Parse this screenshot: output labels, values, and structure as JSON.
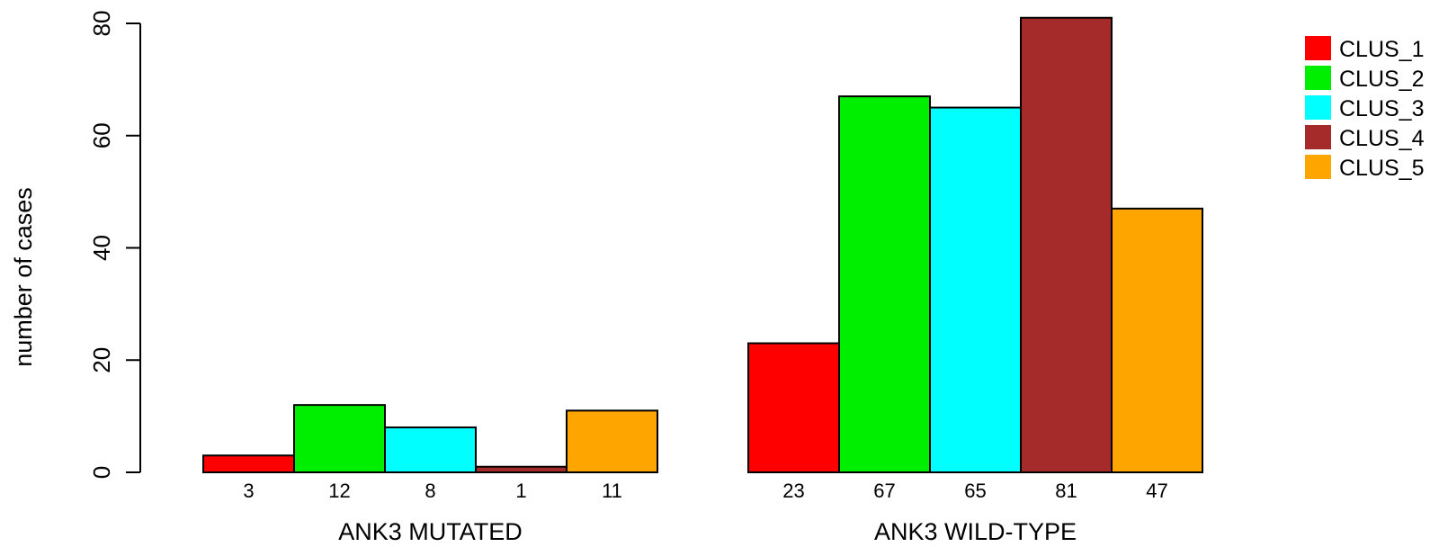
{
  "chart_data": {
    "type": "bar",
    "ylabel": "number of cases",
    "ylim": [
      0,
      80
    ],
    "yticks": [
      0,
      20,
      40,
      60,
      80
    ],
    "grid": false,
    "legend_position": "top-right",
    "groups": [
      {
        "label": "ANK3 MUTATED",
        "values": [
          3,
          12,
          8,
          1,
          11
        ],
        "value_labels": [
          "3",
          "12",
          "8",
          "1",
          "11"
        ]
      },
      {
        "label": "ANK3 WILD-TYPE",
        "values": [
          23,
          67,
          65,
          81,
          47
        ],
        "value_labels": [
          "23",
          "67",
          "65",
          "81",
          "47"
        ]
      }
    ],
    "series": [
      {
        "name": "CLUS_1",
        "color": "#ff0000"
      },
      {
        "name": "CLUS_2",
        "color": "#00ee00"
      },
      {
        "name": "CLUS_3",
        "color": "#00ffff"
      },
      {
        "name": "CLUS_4",
        "color": "#a52a2a"
      },
      {
        "name": "CLUS_5",
        "color": "#ffa500"
      }
    ]
  }
}
